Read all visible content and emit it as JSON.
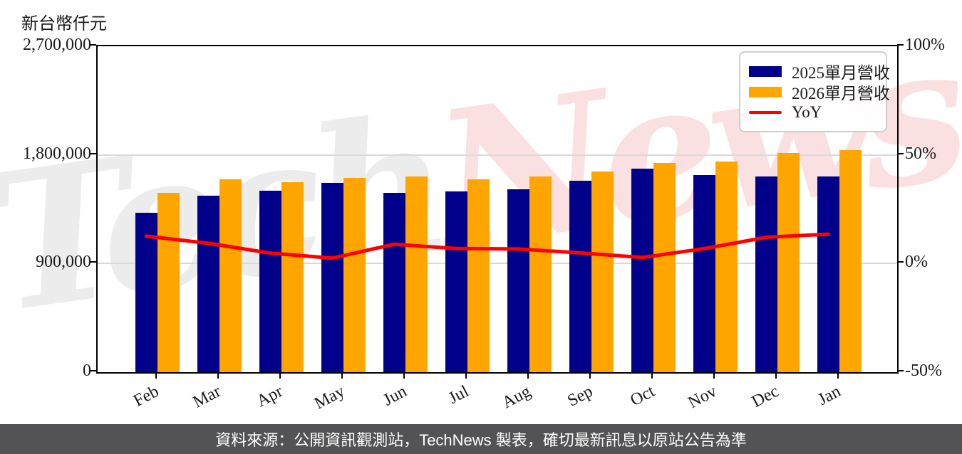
{
  "y_axis_title": "新台幣仟元",
  "left_axis": {
    "ticks": [
      "2,700,000",
      "1,800,000",
      "900,000",
      "0"
    ]
  },
  "right_axis": {
    "ticks": [
      "100%",
      "50%",
      "0%",
      "-50%"
    ]
  },
  "legend": {
    "items": [
      {
        "label": "2025單月營收",
        "color": "#00008B",
        "kind": "bar"
      },
      {
        "label": "2026單月營收",
        "color": "#FFA500",
        "kind": "bar"
      },
      {
        "label": "YoY",
        "color": "#FF0000",
        "kind": "line"
      }
    ]
  },
  "watermark": {
    "text_gray": "Tech",
    "text_pink": "News"
  },
  "footer": {
    "text": "資料來源：公開資訊觀測站，TechNews 製表，確切最新訊息以原站公告為準"
  },
  "chart_data": {
    "type": "bar",
    "title": "",
    "xlabel": "",
    "ylabel": "新台幣仟元",
    "categories": [
      "Feb",
      "Mar",
      "Apr",
      "May",
      "Jun",
      "Jul",
      "Aug",
      "Sep",
      "Oct",
      "Nov",
      "Dec",
      "Jan"
    ],
    "series": [
      {
        "name": "2025單月營收",
        "type": "bar",
        "axis": "left",
        "color": "#00008B",
        "values": [
          1320000,
          1462000,
          1502000,
          1570000,
          1487000,
          1496000,
          1517000,
          1584000,
          1686000,
          1635000,
          1620000,
          1620000
        ]
      },
      {
        "name": "2026單月營收",
        "type": "bar",
        "axis": "left",
        "color": "#FFA500",
        "values": [
          1486000,
          1598000,
          1574000,
          1609000,
          1619000,
          1599000,
          1619000,
          1662000,
          1733000,
          1747000,
          1816000,
          1839000
        ]
      },
      {
        "name": "YoY",
        "type": "line",
        "axis": "right",
        "color": "#FF0000",
        "unit": "%",
        "values": [
          12.6,
          9.3,
          4.8,
          2.5,
          8.9,
          6.9,
          6.7,
          4.9,
          2.8,
          6.9,
          12.1,
          13.5
        ]
      }
    ],
    "ylim_left": [
      0,
      2700000
    ],
    "yticks_left": [
      0,
      900000,
      1800000,
      2700000
    ],
    "ylim_right": [
      -50,
      100
    ],
    "yticks_right": [
      -50,
      0,
      50,
      100
    ],
    "grid": "horizontal",
    "gridline_values_left": [
      900000,
      1800000
    ],
    "legend_position": "top-right"
  }
}
